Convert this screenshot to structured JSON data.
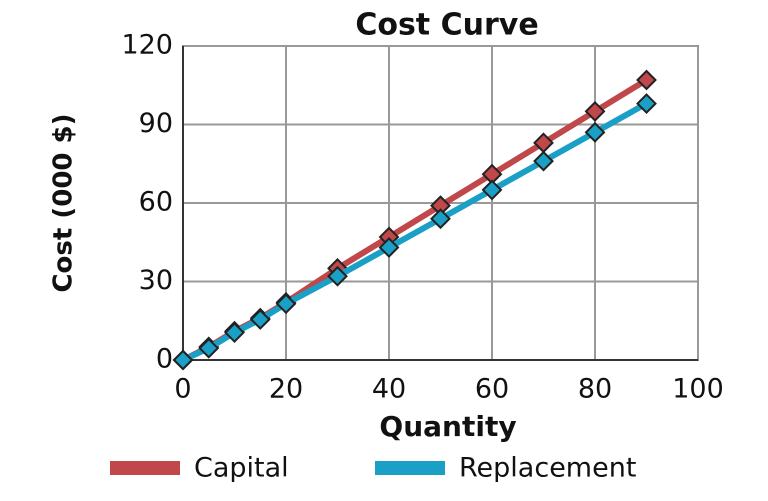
{
  "chart_data": {
    "type": "line",
    "title": "Cost Curve",
    "x_label": "Quantity",
    "y_label": "Cost (000 $)",
    "x": [
      0,
      5,
      10,
      15,
      20,
      30,
      40,
      50,
      60,
      70,
      80,
      90
    ],
    "series": [
      {
        "name": "Capital",
        "color": "#c0474a",
        "values": [
          0,
          5,
          11,
          16,
          22,
          35,
          47,
          59,
          71,
          83,
          95,
          107
        ]
      },
      {
        "name": "Replacement",
        "color": "#1a9fc6",
        "values": [
          0,
          4.5,
          10.5,
          15.5,
          21.5,
          32,
          43,
          54,
          65,
          76,
          87,
          98
        ]
      }
    ],
    "xlim": [
      0,
      100
    ],
    "xticks": [
      0,
      20,
      40,
      60,
      80,
      100
    ],
    "ylim": [
      0,
      120
    ],
    "yticks": [
      0,
      30,
      60,
      90,
      120
    ],
    "grid": true,
    "legend": "bottom"
  }
}
